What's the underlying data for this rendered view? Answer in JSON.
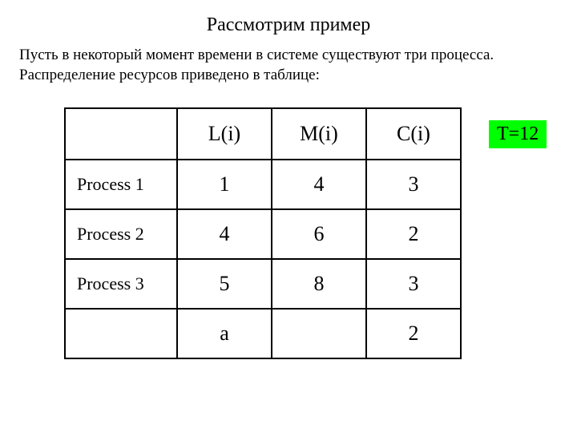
{
  "title": "Рассмотрим пример",
  "description_line1": "Пусть в некоторый момент времени в системе существуют три процесса.",
  "description_line2": "Распределение ресурсов приведено в таблице:",
  "table": {
    "columns": [
      "L(i)",
      "M(i)",
      "C(i)"
    ],
    "rows": [
      {
        "label": "Process 1",
        "cells": [
          "1",
          "4",
          "3"
        ]
      },
      {
        "label": "Process 2",
        "cells": [
          "4",
          "6",
          "2"
        ]
      },
      {
        "label": "Process 3",
        "cells": [
          "5",
          "8",
          "3"
        ]
      }
    ],
    "footer": {
      "label": "",
      "cells": [
        "a",
        "",
        "2"
      ]
    },
    "colors": {
      "border": "#000000",
      "background": "#ffffff",
      "text": "#000000"
    },
    "font_sizes": {
      "header": 26,
      "cell": 26,
      "rowlabel": 22
    }
  },
  "badge": {
    "text": "T=12",
    "background": "#00ff00",
    "font_size": 24
  }
}
